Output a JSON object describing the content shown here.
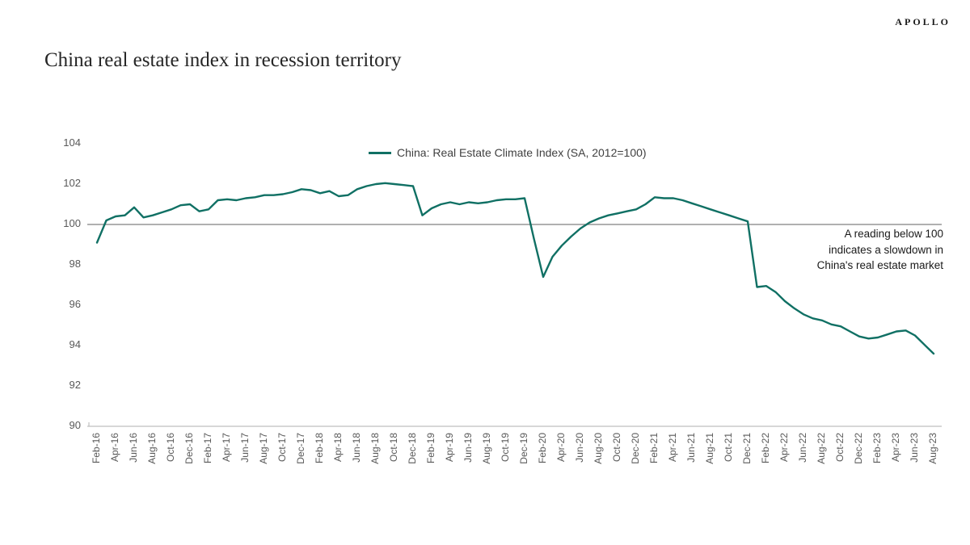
{
  "brand": "APOLLO",
  "title": "China real estate index in recession territory",
  "legend": {
    "label": "China: Real Estate Climate Index (SA, 2012=100)"
  },
  "annotation": {
    "line1": "A reading below 100",
    "line2": "indicates a slowdown in",
    "line3": "China's real estate market"
  },
  "chart_data": {
    "type": "line",
    "title": "China real estate index in recession territory",
    "xlabel": "",
    "ylabel": "",
    "ylim": [
      90,
      104
    ],
    "yticks": [
      90,
      92,
      94,
      96,
      98,
      100,
      102,
      104
    ],
    "reference_line": 100,
    "grid": false,
    "legend_position": "top-center",
    "xtick_every": 2,
    "x": [
      "Feb-16",
      "Mar-16",
      "Apr-16",
      "May-16",
      "Jun-16",
      "Jul-16",
      "Aug-16",
      "Sep-16",
      "Oct-16",
      "Nov-16",
      "Dec-16",
      "Jan-17",
      "Feb-17",
      "Mar-17",
      "Apr-17",
      "May-17",
      "Jun-17",
      "Jul-17",
      "Aug-17",
      "Sep-17",
      "Oct-17",
      "Nov-17",
      "Dec-17",
      "Jan-18",
      "Feb-18",
      "Mar-18",
      "Apr-18",
      "May-18",
      "Jun-18",
      "Jul-18",
      "Aug-18",
      "Sep-18",
      "Oct-18",
      "Nov-18",
      "Dec-18",
      "Jan-19",
      "Feb-19",
      "Mar-19",
      "Apr-19",
      "May-19",
      "Jun-19",
      "Jul-19",
      "Aug-19",
      "Sep-19",
      "Oct-19",
      "Nov-19",
      "Dec-19",
      "Jan-20",
      "Feb-20",
      "Mar-20",
      "Apr-20",
      "May-20",
      "Jun-20",
      "Jul-20",
      "Aug-20",
      "Sep-20",
      "Oct-20",
      "Nov-20",
      "Dec-20",
      "Jan-21",
      "Feb-21",
      "Mar-21",
      "Apr-21",
      "May-21",
      "Jun-21",
      "Jul-21",
      "Aug-21",
      "Sep-21",
      "Oct-21",
      "Nov-21",
      "Dec-21",
      "Jan-22",
      "Feb-22",
      "Mar-22",
      "Apr-22",
      "May-22",
      "Jun-22",
      "Jul-22",
      "Aug-22",
      "Sep-22",
      "Oct-22",
      "Nov-22",
      "Dec-22",
      "Jan-23",
      "Feb-23",
      "Mar-23",
      "Apr-23",
      "May-23",
      "Jun-23",
      "Jul-23",
      "Aug-23"
    ],
    "series": [
      {
        "name": "China: Real Estate Climate Index (SA, 2012=100)",
        "color": "#107064",
        "values": [
          99.1,
          100.2,
          100.4,
          100.45,
          100.85,
          100.35,
          100.45,
          100.6,
          100.75,
          100.95,
          101.0,
          100.65,
          100.75,
          101.2,
          101.25,
          101.2,
          101.3,
          101.35,
          101.45,
          101.45,
          101.5,
          101.6,
          101.75,
          101.7,
          101.55,
          101.65,
          101.4,
          101.45,
          101.75,
          101.9,
          102.0,
          102.05,
          102.0,
          101.95,
          101.9,
          100.45,
          100.8,
          101.0,
          101.1,
          101.0,
          101.1,
          101.05,
          101.1,
          101.2,
          101.25,
          101.25,
          101.3,
          99.3,
          97.4,
          98.4,
          98.95,
          99.4,
          99.8,
          100.1,
          100.3,
          100.45,
          100.55,
          100.65,
          100.75,
          101.0,
          101.35,
          101.3,
          101.3,
          101.2,
          101.05,
          100.9,
          100.75,
          100.6,
          100.45,
          100.3,
          100.15,
          96.9,
          96.95,
          96.65,
          96.2,
          95.85,
          95.55,
          95.35,
          95.25,
          95.05,
          94.95,
          94.7,
          94.45,
          94.35,
          94.4,
          94.55,
          94.7,
          94.75,
          94.5,
          94.05,
          93.6
        ]
      }
    ],
    "annotation": "A reading below 100 indicates a slowdown in China's real estate market"
  }
}
